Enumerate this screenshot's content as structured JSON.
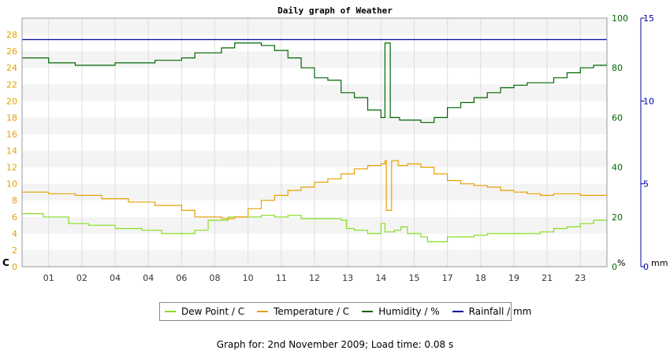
{
  "chart_data": {
    "type": "line",
    "title": "Daily graph of Weather",
    "x_tick_labels": [
      "01",
      "02",
      "04",
      "04",
      "06",
      "08",
      "10",
      "11",
      "12",
      "13",
      "14",
      "15",
      "17",
      "18",
      "19",
      "21",
      "23"
    ],
    "left_axis": {
      "unit_label": "C",
      "ticks": [
        0,
        2,
        4,
        6,
        8,
        10,
        12,
        14,
        16,
        18,
        20,
        22,
        24,
        26,
        28
      ],
      "range": [
        0,
        30
      ],
      "color": "#e6a100"
    },
    "right_axis_humidity": {
      "unit_label": "%",
      "ticks": [
        0,
        20,
        40,
        60,
        80,
        100
      ],
      "range": [
        0,
        100
      ],
      "color": "#006600"
    },
    "right_axis_rainfall": {
      "unit_label": "mm",
      "ticks": [
        0,
        5,
        10,
        15
      ],
      "range": [
        0,
        15
      ],
      "color": "#0000aa"
    },
    "grid": "horizontal bands",
    "legend_position": "bottom",
    "series": [
      {
        "name": "Dew Point / C",
        "axis": "left",
        "color": "#88dd22",
        "points": [
          [
            0,
            6.4
          ],
          [
            1,
            6.4
          ],
          [
            1.6,
            6.0
          ],
          [
            3.5,
            5.2
          ],
          [
            5,
            5.0
          ],
          [
            7,
            4.6
          ],
          [
            9,
            4.4
          ],
          [
            10.5,
            4.0
          ],
          [
            12,
            4.0
          ],
          [
            13,
            4.4
          ],
          [
            14,
            5.6
          ],
          [
            15.5,
            6.0
          ],
          [
            18,
            6.2
          ],
          [
            19,
            6.0
          ],
          [
            20,
            6.2
          ],
          [
            21,
            5.8
          ],
          [
            23,
            5.8
          ],
          [
            24,
            5.6
          ],
          [
            24.4,
            4.6
          ],
          [
            25,
            4.4
          ],
          [
            26,
            4.0
          ],
          [
            26.8,
            4.0
          ],
          [
            27,
            5.2
          ],
          [
            27.3,
            4.2
          ],
          [
            28,
            4.4
          ],
          [
            28.5,
            4.8
          ],
          [
            29,
            4.0
          ],
          [
            30,
            3.6
          ],
          [
            30.5,
            3.0
          ],
          [
            32,
            3.6
          ],
          [
            34,
            3.8
          ],
          [
            35,
            4.0
          ],
          [
            37,
            4.0
          ],
          [
            38,
            4.0
          ],
          [
            39,
            4.2
          ],
          [
            40,
            4.6
          ],
          [
            41,
            4.8
          ],
          [
            42,
            5.2
          ],
          [
            43,
            5.6
          ],
          [
            44,
            5.8
          ]
        ]
      },
      {
        "name": "Temperature / C",
        "axis": "left",
        "color": "#e6a100",
        "points": [
          [
            0,
            9.0
          ],
          [
            2,
            8.8
          ],
          [
            4,
            8.6
          ],
          [
            6,
            8.2
          ],
          [
            8,
            7.8
          ],
          [
            10,
            7.4
          ],
          [
            12,
            6.8
          ],
          [
            13,
            6.0
          ],
          [
            15,
            5.8
          ],
          [
            16,
            6.0
          ],
          [
            17,
            7.0
          ],
          [
            18,
            8.0
          ],
          [
            19,
            8.6
          ],
          [
            20,
            9.2
          ],
          [
            21,
            9.6
          ],
          [
            22,
            10.2
          ],
          [
            23,
            10.6
          ],
          [
            24,
            11.2
          ],
          [
            25,
            11.8
          ],
          [
            26,
            12.2
          ],
          [
            27,
            12.4
          ],
          [
            27.3,
            12.8
          ],
          [
            27.4,
            6.8
          ],
          [
            27.7,
            6.8
          ],
          [
            27.8,
            12.8
          ],
          [
            28.3,
            12.2
          ],
          [
            29,
            12.4
          ],
          [
            30,
            12.0
          ],
          [
            31,
            11.2
          ],
          [
            32,
            10.4
          ],
          [
            33,
            10.0
          ],
          [
            34,
            9.8
          ],
          [
            35,
            9.6
          ],
          [
            36,
            9.2
          ],
          [
            37,
            9.0
          ],
          [
            38,
            8.8
          ],
          [
            39,
            8.6
          ],
          [
            40,
            8.8
          ],
          [
            41,
            8.8
          ],
          [
            42,
            8.6
          ],
          [
            43,
            8.6
          ],
          [
            44,
            8.8
          ]
        ]
      },
      {
        "name": "Humidity / %",
        "axis": "right",
        "color": "#006600",
        "points": [
          [
            0,
            84
          ],
          [
            1.5,
            84
          ],
          [
            2,
            82
          ],
          [
            4,
            81
          ],
          [
            6,
            81
          ],
          [
            7,
            82
          ],
          [
            9,
            82
          ],
          [
            10,
            83
          ],
          [
            12,
            84
          ],
          [
            13,
            86
          ],
          [
            15,
            88
          ],
          [
            16,
            90
          ],
          [
            17,
            90
          ],
          [
            18,
            89
          ],
          [
            19,
            87
          ],
          [
            20,
            84
          ],
          [
            21,
            80
          ],
          [
            22,
            76
          ],
          [
            23,
            75
          ],
          [
            24,
            70
          ],
          [
            25,
            68
          ],
          [
            26,
            63
          ],
          [
            27,
            60
          ],
          [
            27.3,
            90
          ],
          [
            27.6,
            90
          ],
          [
            27.7,
            60
          ],
          [
            28.4,
            59
          ],
          [
            29,
            59
          ],
          [
            30,
            58
          ],
          [
            31,
            60
          ],
          [
            32,
            64
          ],
          [
            33,
            66
          ],
          [
            34,
            68
          ],
          [
            35,
            70
          ],
          [
            36,
            72
          ],
          [
            37,
            73
          ],
          [
            38,
            74
          ],
          [
            39,
            74
          ],
          [
            40,
            76
          ],
          [
            41,
            78
          ],
          [
            42,
            80
          ],
          [
            43,
            81
          ],
          [
            44,
            82
          ]
        ]
      },
      {
        "name": "Rainfall / mm",
        "axis": "rainfall",
        "color": "#000099",
        "points": [
          [
            0,
            13.7
          ],
          [
            44,
            13.7
          ]
        ]
      }
    ]
  },
  "legend": [
    {
      "label": "Dew Point / C",
      "color": "#88dd22"
    },
    {
      "label": "Temperature / C",
      "color": "#e6a100"
    },
    {
      "label": "Humidity / %",
      "color": "#006600"
    },
    {
      "label": "Rainfall / mm",
      "color": "#000099"
    }
  ],
  "footer": {
    "text": "Graph for: 2nd November 2009; Load time: 0.08 s"
  }
}
